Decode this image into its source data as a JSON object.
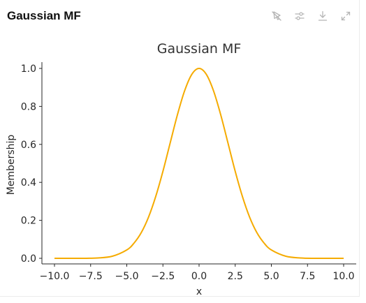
{
  "panel": {
    "title": "Gaussian MF",
    "toolbar": [
      {
        "name": "pin-off-icon"
      },
      {
        "name": "sliders-icon"
      },
      {
        "name": "download-icon"
      },
      {
        "name": "expand-icon"
      }
    ]
  },
  "chart_data": {
    "type": "line",
    "title": "Gaussian MF",
    "xlabel": "x",
    "ylabel": "Membership",
    "xlim": [
      -10,
      10
    ],
    "ylim": [
      0,
      1
    ],
    "grid": false,
    "legend": "none",
    "xticks": [
      -10.0,
      -7.5,
      -5.0,
      -2.5,
      0.0,
      2.5,
      5.0,
      7.5,
      10.0
    ],
    "xtick_labels": [
      "−10.0",
      "−7.5",
      "−5.0",
      "−2.5",
      "0.0",
      "2.5",
      "5.0",
      "7.5",
      "10.0"
    ],
    "yticks": [
      0.0,
      0.2,
      0.4,
      0.6,
      0.8,
      1.0
    ],
    "ytick_labels": [
      "0.0",
      "0.2",
      "0.4",
      "0.6",
      "0.8",
      "1.0"
    ],
    "series": [
      {
        "color": "#f5ab00",
        "x": [
          -10,
          -9,
          -8,
          -7,
          -6,
          -5,
          -4.5,
          -4,
          -3.5,
          -3,
          -2.5,
          -2,
          -1.5,
          -1,
          -0.5,
          0,
          0.5,
          1,
          1.5,
          2,
          2.5,
          3,
          3.5,
          4,
          4.5,
          5,
          6,
          7,
          8,
          9,
          10
        ],
        "y": [
          0.0,
          0.0,
          0.0,
          0.002,
          0.011,
          0.044,
          0.08,
          0.135,
          0.216,
          0.325,
          0.458,
          0.607,
          0.755,
          0.882,
          0.969,
          1.0,
          0.969,
          0.882,
          0.755,
          0.607,
          0.458,
          0.325,
          0.216,
          0.135,
          0.08,
          0.044,
          0.011,
          0.002,
          0.0,
          0.0,
          0.0
        ]
      }
    ]
  }
}
